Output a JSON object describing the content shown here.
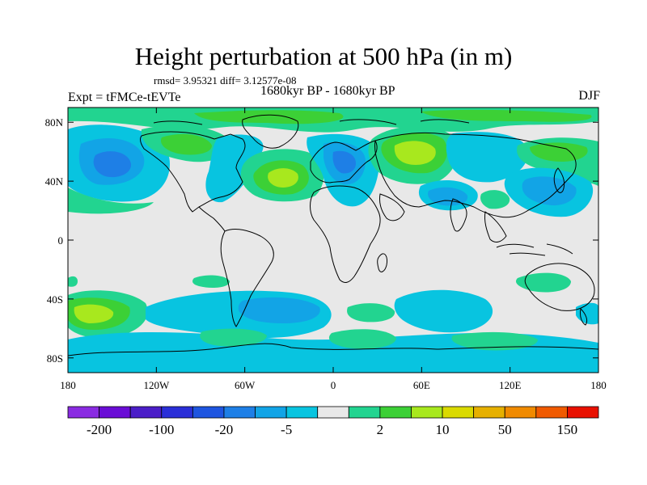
{
  "title": "Height perturbation at 500 hPa (in m)",
  "stats": "rmsd= 3.95321 diff= 3.12577e-08",
  "period": "1680kyr BP - 1680kyr BP",
  "experiment": "Expt = tFMCe-tEVTe",
  "season": "DJF",
  "map": {
    "projection": "cylindrical-equidistant",
    "lon_range": [
      -180,
      180
    ],
    "lat_range": [
      -90,
      90
    ],
    "background_color": "#e8e8e8",
    "lat_ticks": [
      {
        "value": 80,
        "label": "80N"
      },
      {
        "value": 40,
        "label": "40N"
      },
      {
        "value": 0,
        "label": "0"
      },
      {
        "value": -40,
        "label": "40S"
      },
      {
        "value": -80,
        "label": "80S"
      }
    ],
    "lon_ticks": [
      {
        "value": -180,
        "label": "180"
      },
      {
        "value": -120,
        "label": "120W"
      },
      {
        "value": -60,
        "label": "60W"
      },
      {
        "value": 0,
        "label": "0"
      },
      {
        "value": 60,
        "label": "60E"
      },
      {
        "value": 120,
        "label": "120E"
      },
      {
        "value": 180,
        "label": "180"
      }
    ]
  },
  "colorbar": {
    "colors": [
      "#8a2be2",
      "#6a0dd6",
      "#4b1ec8",
      "#2a2fd8",
      "#1e55e0",
      "#1e7fe6",
      "#12a4e6",
      "#08c4e0",
      "#e8e8e8",
      "#22d490",
      "#3cd036",
      "#a8e81e",
      "#dada00",
      "#e6b000",
      "#f08a00",
      "#f05a00",
      "#e81000"
    ],
    "labels": [
      {
        "boundary": 1,
        "text": "-200"
      },
      {
        "boundary": 3,
        "text": "-100"
      },
      {
        "boundary": 5,
        "text": "-20"
      },
      {
        "boundary": 7,
        "text": "-5"
      },
      {
        "boundary": 10,
        "text": "2"
      },
      {
        "boundary": 12,
        "text": "10"
      },
      {
        "boundary": 14,
        "text": "50"
      },
      {
        "boundary": 16,
        "text": "150"
      }
    ]
  }
}
